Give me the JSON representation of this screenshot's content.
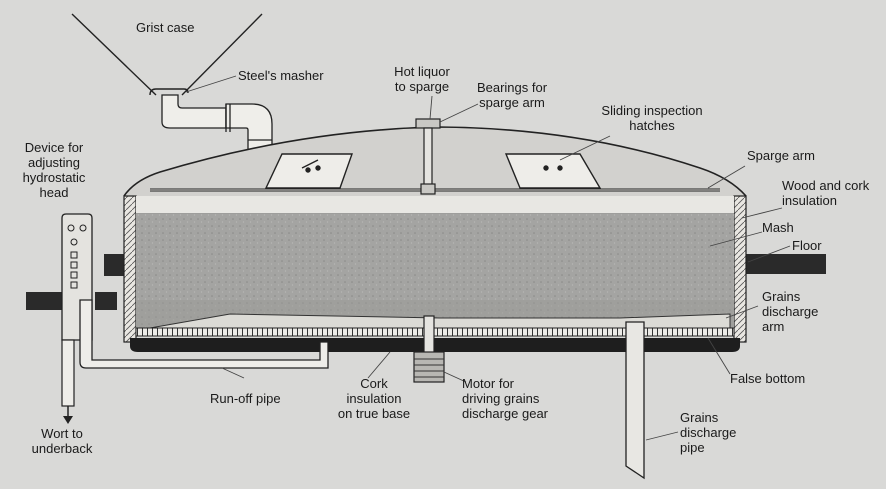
{
  "labels": {
    "grist_case": "Grist case",
    "steels_masher": "Steel's masher",
    "hot_liquor": "Hot liquor\nto sparge",
    "bearings": "Bearings for\nsparge arm",
    "sliding_hatches": "Sliding inspection\nhatches",
    "device": "Device for\nadjusting\nhydrostatic\nhead",
    "sparge_arm": "Sparge arm",
    "insulation": "Wood and cork\ninsulation",
    "mash": "Mash",
    "floor": "Floor",
    "grains_arm": "Grains\ndischarge\narm",
    "false_bottom": "False bottom",
    "run_off_pipe": "Run-off pipe",
    "cork_insulation": "Cork\ninsulation\non true base",
    "motor": "Motor for\ndriving grains\ndischarge gear",
    "grains_pipe": "Grains\ndischarge\npipe",
    "wort": "Wort to\nunderback"
  }
}
